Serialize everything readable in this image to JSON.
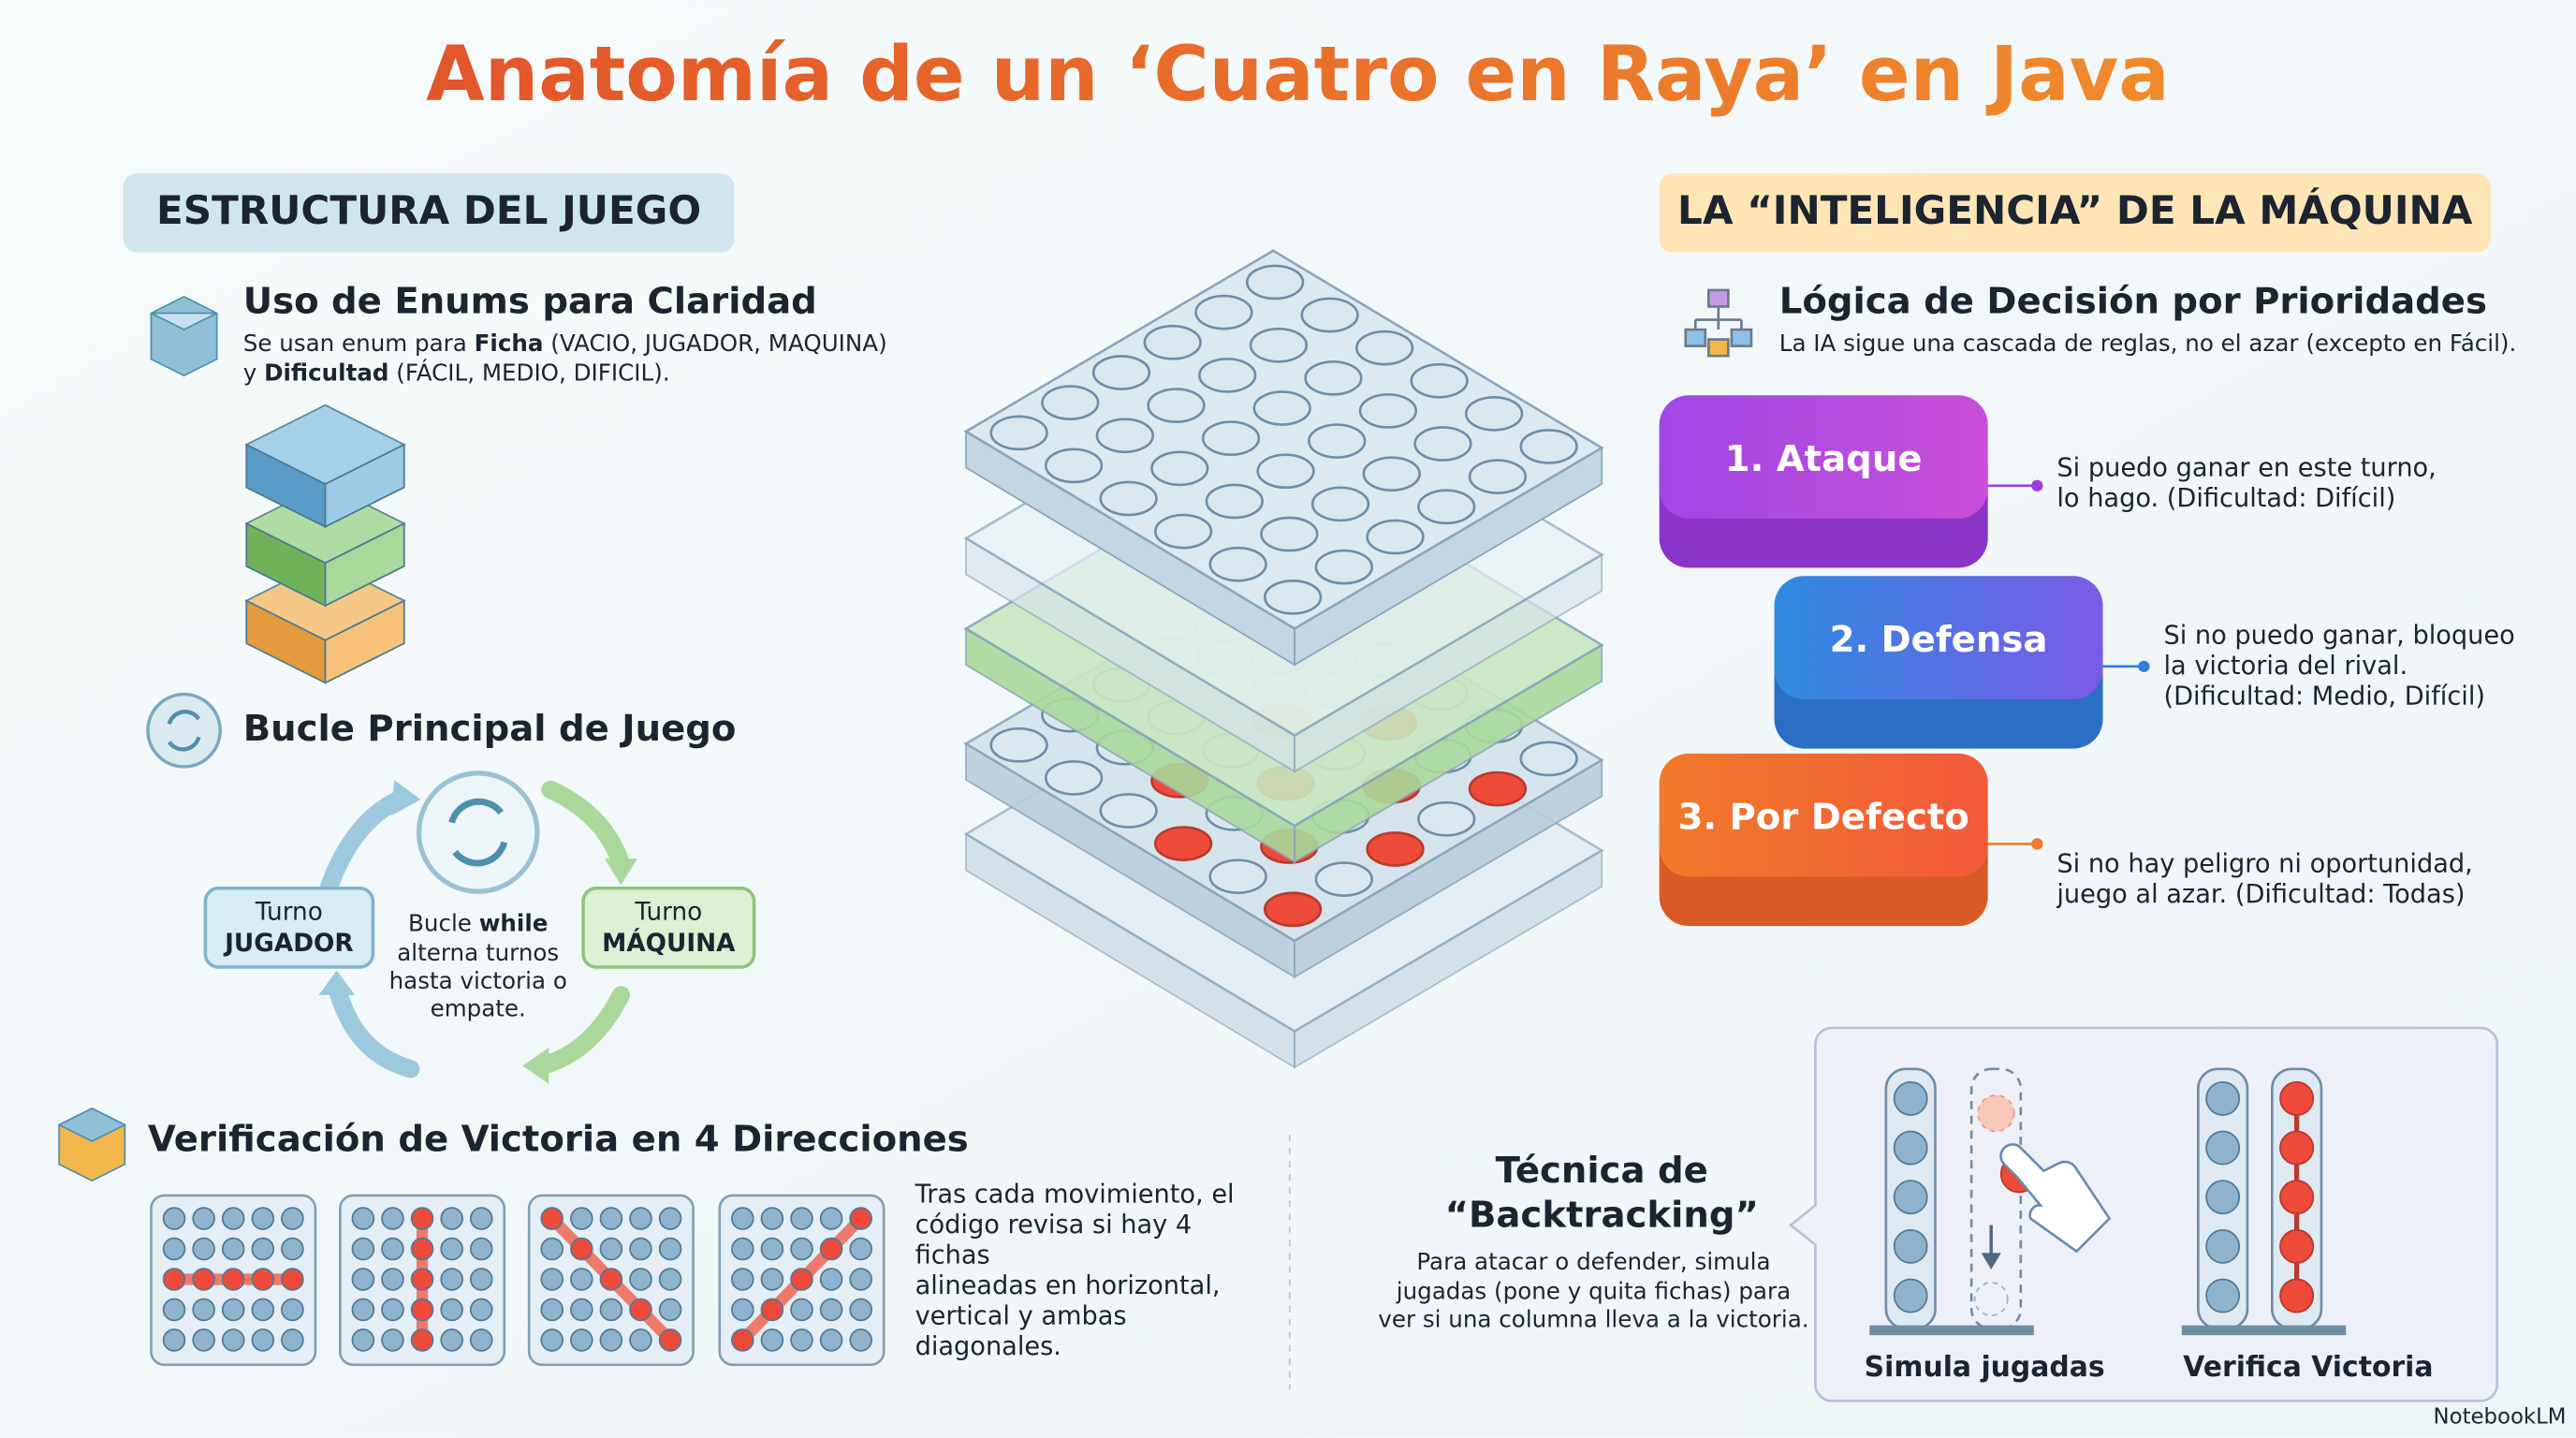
{
  "title": "Anatomía de un ‘Cuatro en Raya’ en Java",
  "game_structure": {
    "heading": "ESTRUCTURA DEL JUEGO",
    "enums": {
      "title": "Uso de Enums para Claridad",
      "lines": [
        [
          "Se usan enum para ",
          "Ficha",
          " (VACIO, JUGADOR, MAQUINA)"
        ],
        [
          "y ",
          "Dificultad",
          " (FÁCIL, MEDIO, DIFICIL)."
        ]
      ]
    },
    "main_loop": {
      "title": "Bucle Principal de Juego",
      "player": [
        "Turno",
        "JUGADOR"
      ],
      "machine": [
        "Turno",
        "MÁQUINA"
      ],
      "center": [
        [
          "Bucle ",
          "while"
        ],
        "alterna turnos",
        "hasta victoria o",
        "empate."
      ]
    },
    "victory": {
      "title": "Verificación de Victoria en 4 Direcciones",
      "lines": [
        "Tras cada movimiento, el",
        "código revisa si hay 4",
        "fichas",
        "alineadas en horizontal,",
        "vertical y ambas",
        "diagonales."
      ]
    }
  },
  "machine_intelligence": {
    "heading": "LA “INTELIGENCIA” DE LA MÁQUINA",
    "logic": {
      "title": "Lógica de Decisión por Prioridades",
      "subtitle": "La IA sigue una cascada de reglas, no el azar (excepto en Fácil)."
    },
    "rules": [
      {
        "label": "1. Ataque",
        "lines": [
          "Si puedo ganar en este turno,",
          "lo hago. (Dificultad: Difícil)"
        ]
      },
      {
        "label": "2. Defensa",
        "lines": [
          "Si no puedo ganar, bloqueo",
          "la victoria del rival.",
          "(Dificultad: Medio, Difícil)"
        ]
      },
      {
        "label": "3. Por Defecto",
        "lines": [
          "Si no hay peligro ni oportunidad,",
          "juego al azar. (Dificultad: Todas)"
        ]
      }
    ],
    "backtracking": {
      "title": [
        "Técnica de",
        "“Backtracking”"
      ],
      "lines": [
        "Para atacar o defender, simula",
        "jugadas (pone y quita fichas) para",
        "ver si una columna lleva a la victoria."
      ],
      "captions": [
        "Simula jugadas",
        "Verifica Victoria"
      ]
    }
  },
  "footer": "NotebookLM"
}
